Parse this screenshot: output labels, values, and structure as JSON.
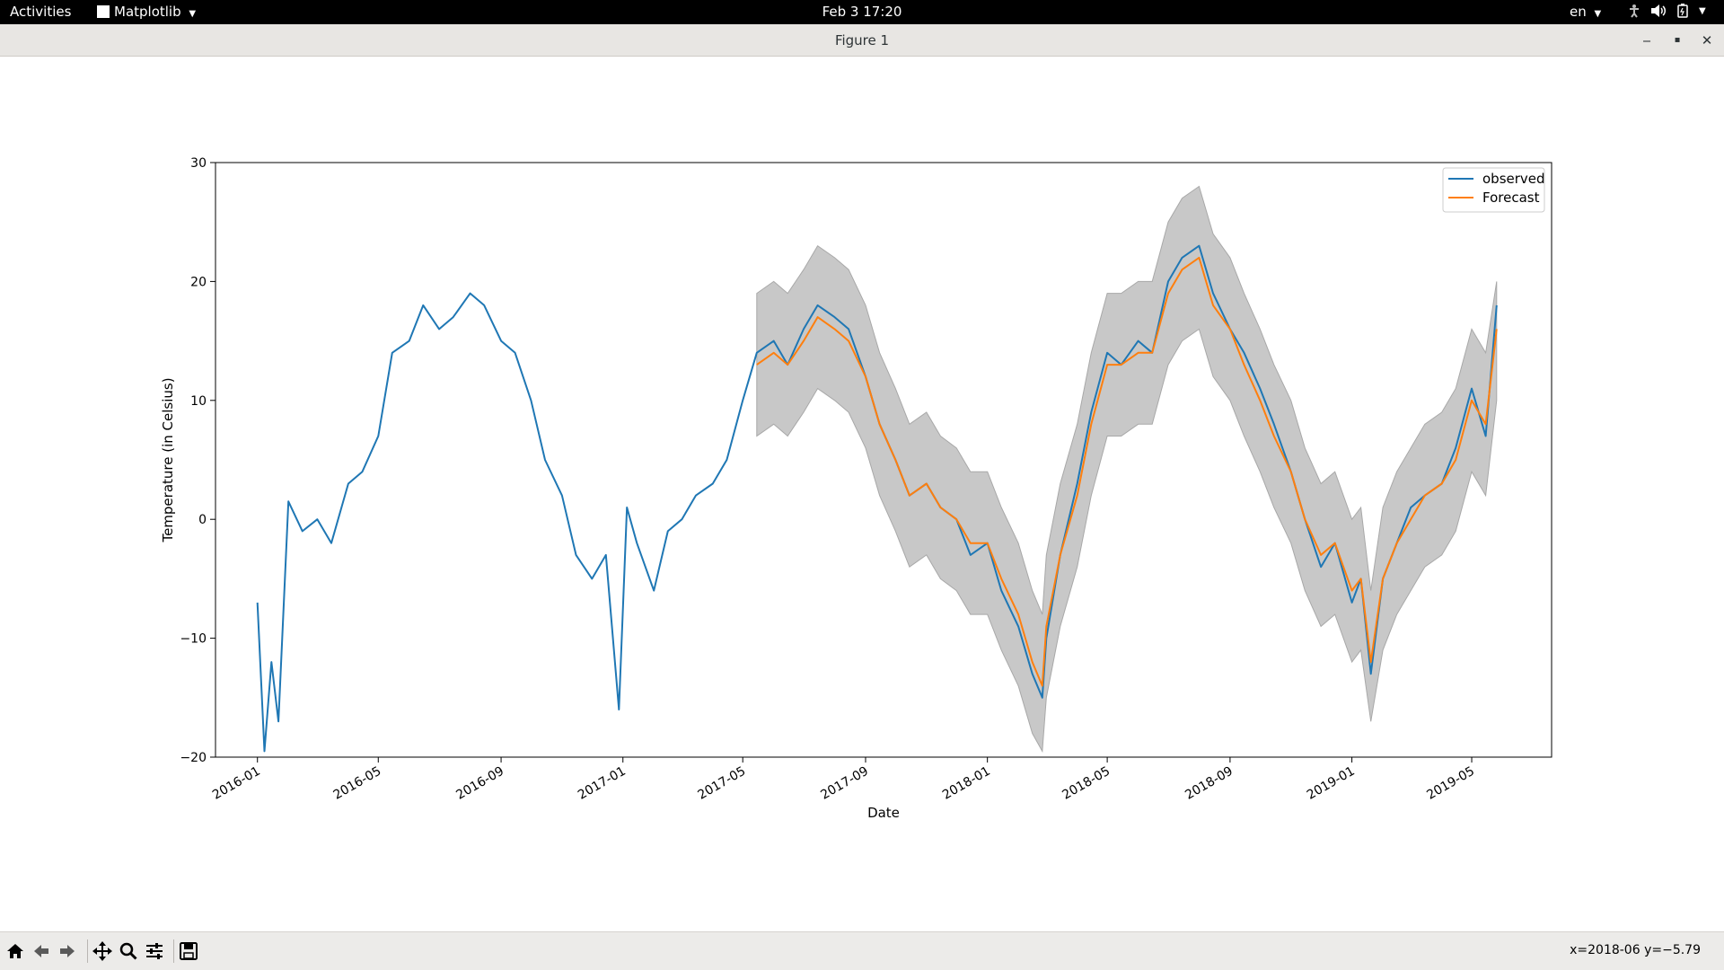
{
  "topbar": {
    "activities": "Activities",
    "app_menu": "Matplotlib",
    "datetime": "Feb 3  17:20",
    "language": "en"
  },
  "window": {
    "title": "Figure 1"
  },
  "toolbar": {
    "coords": "x=2018-06 y=−5.79",
    "buttons": [
      "home-icon",
      "back-arrow-icon",
      "forward-arrow-icon",
      "pan-icon",
      "zoom-icon",
      "configure-subplots-icon",
      "save-icon"
    ]
  },
  "chart_data": {
    "type": "line",
    "xlabel": "Date",
    "ylabel": "Temperature (in Celsius)",
    "ylim": [
      -20,
      30
    ],
    "xlim": [
      "2015-11-20",
      "2019-07-20"
    ],
    "yticks": [
      -20,
      -10,
      0,
      10,
      20,
      30
    ],
    "xticks": [
      "2016-01",
      "2016-05",
      "2016-09",
      "2017-01",
      "2017-05",
      "2017-09",
      "2018-01",
      "2018-05",
      "2018-09",
      "2019-01",
      "2019-05"
    ],
    "legend": {
      "position": "top-right",
      "entries": [
        "observed",
        "Forecast"
      ]
    },
    "colors": {
      "observed": "#1f77b4",
      "forecast": "#ff7f0e",
      "band": "#c8c8c8",
      "band_edge": "#a8a8a8"
    },
    "series": [
      {
        "name": "observed",
        "x": [
          "2016-01-01",
          "2016-01-08",
          "2016-01-15",
          "2016-01-22",
          "2016-02-01",
          "2016-02-15",
          "2016-03-01",
          "2016-03-15",
          "2016-04-01",
          "2016-04-15",
          "2016-05-01",
          "2016-05-15",
          "2016-06-01",
          "2016-06-15",
          "2016-07-01",
          "2016-07-15",
          "2016-08-01",
          "2016-08-15",
          "2016-09-01",
          "2016-09-15",
          "2016-10-01",
          "2016-10-15",
          "2016-11-01",
          "2016-11-15",
          "2016-12-01",
          "2016-12-15",
          "2016-12-28",
          "2017-01-05",
          "2017-01-15",
          "2017-02-01",
          "2017-02-15",
          "2017-03-01",
          "2017-03-15",
          "2017-04-01",
          "2017-04-15",
          "2017-05-01",
          "2017-05-15",
          "2017-06-01",
          "2017-06-15",
          "2017-07-01",
          "2017-07-15",
          "2017-08-01",
          "2017-08-15",
          "2017-09-01",
          "2017-09-15",
          "2017-10-01",
          "2017-10-15",
          "2017-11-01",
          "2017-11-15",
          "2017-12-01",
          "2017-12-15",
          "2018-01-01",
          "2018-01-15",
          "2018-02-01",
          "2018-02-15",
          "2018-02-25",
          "2018-03-01",
          "2018-03-15",
          "2018-04-01",
          "2018-04-15",
          "2018-05-01",
          "2018-05-15",
          "2018-06-01",
          "2018-06-15",
          "2018-07-01",
          "2018-07-15",
          "2018-08-01",
          "2018-08-15",
          "2018-09-01",
          "2018-09-15",
          "2018-10-01",
          "2018-10-15",
          "2018-11-01",
          "2018-11-15",
          "2018-12-01",
          "2018-12-15",
          "2019-01-01",
          "2019-01-10",
          "2019-01-20",
          "2019-02-01",
          "2019-02-15",
          "2019-03-01",
          "2019-03-15",
          "2019-04-01",
          "2019-04-15",
          "2019-05-01",
          "2019-05-15",
          "2019-05-26"
        ],
        "values": [
          -7,
          -19.5,
          -12,
          -17,
          1.5,
          -1,
          0,
          -2,
          3,
          4,
          7,
          14,
          15,
          18,
          16,
          17,
          19,
          18,
          15,
          14,
          10,
          5,
          2,
          -3,
          -5,
          -3,
          -16,
          1,
          -2,
          -6,
          -1,
          0,
          2,
          3,
          5,
          10,
          14,
          15,
          13,
          16,
          18,
          17,
          16,
          12,
          8,
          5,
          2,
          3,
          1,
          0,
          -3,
          -2,
          -6,
          -9,
          -13,
          -15,
          -10,
          -3,
          3,
          9,
          14,
          13,
          15,
          14,
          20,
          22,
          23,
          19,
          16,
          14,
          11,
          8,
          4,
          0,
          -4,
          -2,
          -7,
          -5,
          -13,
          -5,
          -2,
          1,
          2,
          3,
          6,
          11,
          7,
          18
        ]
      },
      {
        "name": "Forecast",
        "x": [
          "2017-05-15",
          "2017-06-01",
          "2017-06-15",
          "2017-07-01",
          "2017-07-15",
          "2017-08-01",
          "2017-08-15",
          "2017-09-01",
          "2017-09-15",
          "2017-10-01",
          "2017-10-15",
          "2017-11-01",
          "2017-11-15",
          "2017-12-01",
          "2017-12-15",
          "2018-01-01",
          "2018-01-15",
          "2018-02-01",
          "2018-02-15",
          "2018-02-25",
          "2018-03-01",
          "2018-03-15",
          "2018-04-01",
          "2018-04-15",
          "2018-05-01",
          "2018-05-15",
          "2018-06-01",
          "2018-06-15",
          "2018-07-01",
          "2018-07-15",
          "2018-08-01",
          "2018-08-15",
          "2018-09-01",
          "2018-09-15",
          "2018-10-01",
          "2018-10-15",
          "2018-11-01",
          "2018-11-15",
          "2018-12-01",
          "2018-12-15",
          "2019-01-01",
          "2019-01-10",
          "2019-01-20",
          "2019-02-01",
          "2019-02-15",
          "2019-03-01",
          "2019-03-15",
          "2019-04-01",
          "2019-04-15",
          "2019-05-01",
          "2019-05-15",
          "2019-05-26"
        ],
        "values": [
          13,
          14,
          13,
          15,
          17,
          16,
          15,
          12,
          8,
          5,
          2,
          3,
          1,
          0,
          -2,
          -2,
          -5,
          -8,
          -12,
          -14,
          -9,
          -3,
          2,
          8,
          13,
          13,
          14,
          14,
          19,
          21,
          22,
          18,
          16,
          13,
          10,
          7,
          4,
          0,
          -3,
          -2,
          -6,
          -5,
          -12,
          -5,
          -2,
          0,
          2,
          3,
          5,
          10,
          8,
          16
        ],
        "upper": [
          19,
          20,
          19,
          21,
          23,
          22,
          21,
          18,
          14,
          11,
          8,
          9,
          7,
          6,
          4,
          4,
          1,
          -2,
          -6,
          -8,
          -3,
          3,
          8,
          14,
          19,
          19,
          20,
          20,
          25,
          27,
          28,
          24,
          22,
          19,
          16,
          13,
          10,
          6,
          3,
          4,
          0,
          1,
          -6,
          1,
          4,
          6,
          8,
          9,
          11,
          16,
          14,
          20
        ],
        "lower": [
          7,
          8,
          7,
          9,
          11,
          10,
          9,
          6,
          2,
          -1,
          -4,
          -3,
          -5,
          -6,
          -8,
          -8,
          -11,
          -14,
          -18,
          -19.5,
          -15,
          -9,
          -4,
          2,
          7,
          7,
          8,
          8,
          13,
          15,
          16,
          12,
          10,
          7,
          4,
          1,
          -2,
          -6,
          -9,
          -8,
          -12,
          -11,
          -17,
          -11,
          -8,
          -6,
          -4,
          -3,
          -1,
          4,
          2,
          10
        ]
      }
    ]
  }
}
